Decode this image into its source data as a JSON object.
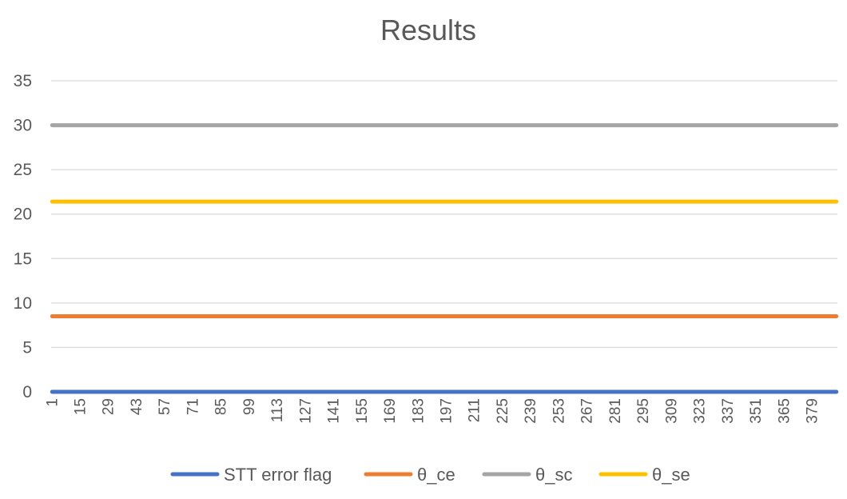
{
  "chart_data": {
    "type": "line",
    "title": "Results",
    "xlabel": "",
    "ylabel": "",
    "ylim": [
      0,
      35
    ],
    "yticks": [
      0,
      5,
      10,
      15,
      20,
      25,
      30,
      35
    ],
    "x_range": [
      1,
      391
    ],
    "x_tick_labels": [
      "1",
      "15",
      "29",
      "43",
      "57",
      "71",
      "85",
      "99",
      "113",
      "127",
      "141",
      "155",
      "169",
      "183",
      "197",
      "211",
      "225",
      "239",
      "253",
      "267",
      "281",
      "295",
      "309",
      "323",
      "337",
      "351",
      "365",
      "379"
    ],
    "grid": true,
    "legend_position": "bottom",
    "series": [
      {
        "name": "STT error flag",
        "color": "#4472C4",
        "value": 0
      },
      {
        "name": "θ_ce",
        "color": "#ED7D31",
        "value": 8.5
      },
      {
        "name": "θ_sc",
        "color": "#A5A5A5",
        "value": 30
      },
      {
        "name": "θ_se",
        "color": "#FFC000",
        "value": 21.4
      }
    ]
  }
}
